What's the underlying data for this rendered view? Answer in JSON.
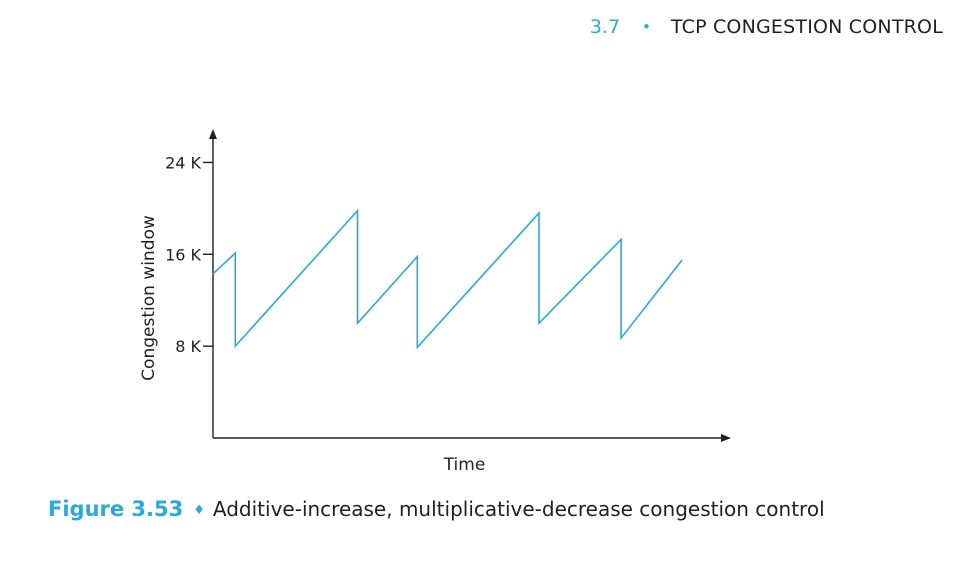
{
  "running_head": {
    "section_number": "3.7",
    "bullet": "•",
    "section_title": "TCP CONGESTION CONTROL"
  },
  "caption": {
    "figure_number": "Figure 3.53",
    "separator": "♦",
    "text": "Additive-increase, multiplicative-decrease congestion control"
  },
  "colors": {
    "accent": "#29a9e0",
    "line": "#29a9e0",
    "text": "#231f20",
    "axis": "#231f20"
  },
  "chart_data": {
    "type": "line",
    "title": "",
    "xlabel": "Time",
    "ylabel": "Congestion window",
    "ylim": [
      0,
      27
    ],
    "xlim": [
      0,
      100
    ],
    "yticks": [
      8,
      16,
      24
    ],
    "ytick_labels": [
      "8 K",
      "16 K",
      "24 K"
    ],
    "x_tick_labels": [],
    "grid": false,
    "legend": "none",
    "series": [
      {
        "x": [
          0,
          4.4,
          4.4,
          28.5,
          28.5,
          40.3,
          40.3,
          64.3,
          64.3,
          80.5,
          80.5,
          92.5
        ],
        "y": [
          14.3,
          16.1,
          8.0,
          19.8,
          10.0,
          15.8,
          7.9,
          19.6,
          10.0,
          17.3,
          8.7,
          15.5
        ]
      }
    ]
  }
}
